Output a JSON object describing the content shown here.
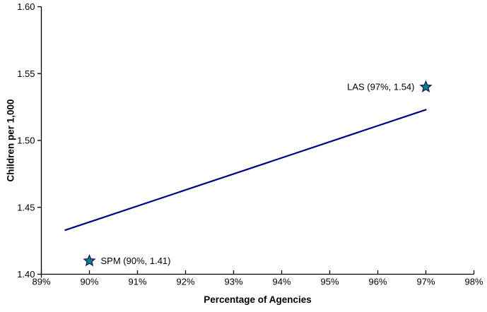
{
  "chart_data": {
    "type": "scatter",
    "title": "",
    "xlabel": "Percentage of Agencies",
    "ylabel": "Children per 1,000",
    "xlim": [
      89,
      98
    ],
    "ylim": [
      1.4,
      1.6
    ],
    "grid": false,
    "legend": false,
    "x_ticks": [
      {
        "value": 89,
        "label": "89%"
      },
      {
        "value": 90,
        "label": "90%"
      },
      {
        "value": 91,
        "label": "91%"
      },
      {
        "value": 92,
        "label": "92%"
      },
      {
        "value": 93,
        "label": "93%"
      },
      {
        "value": 94,
        "label": "94%"
      },
      {
        "value": 95,
        "label": "95%"
      },
      {
        "value": 96,
        "label": "96%"
      },
      {
        "value": 97,
        "label": "97%"
      },
      {
        "value": 98,
        "label": "98%"
      }
    ],
    "y_ticks": [
      {
        "value": 1.4,
        "label": "1.40"
      },
      {
        "value": 1.45,
        "label": "1.45"
      },
      {
        "value": 1.5,
        "label": "1.50"
      },
      {
        "value": 1.55,
        "label": "1.55"
      },
      {
        "value": 1.6,
        "label": "1.60"
      }
    ],
    "points": [
      {
        "name": "SPM",
        "x": 90,
        "y": 1.41,
        "label": "SPM (90%, 1.41)",
        "label_side": "right",
        "marker": "star"
      },
      {
        "name": "LAS",
        "x": 97,
        "y": 1.54,
        "label": "LAS (97%, 1.54)",
        "label_side": "left",
        "marker": "star"
      }
    ],
    "trend_line": {
      "x1": 89.5,
      "y1": 1.433,
      "x2": 97.0,
      "y2": 1.523
    },
    "colors": {
      "trend_line": "#000080",
      "marker_fill": "#008080",
      "marker_stroke": "#14145a",
      "axis": "#000000",
      "text": "#000000",
      "background": "#ffffff"
    }
  }
}
